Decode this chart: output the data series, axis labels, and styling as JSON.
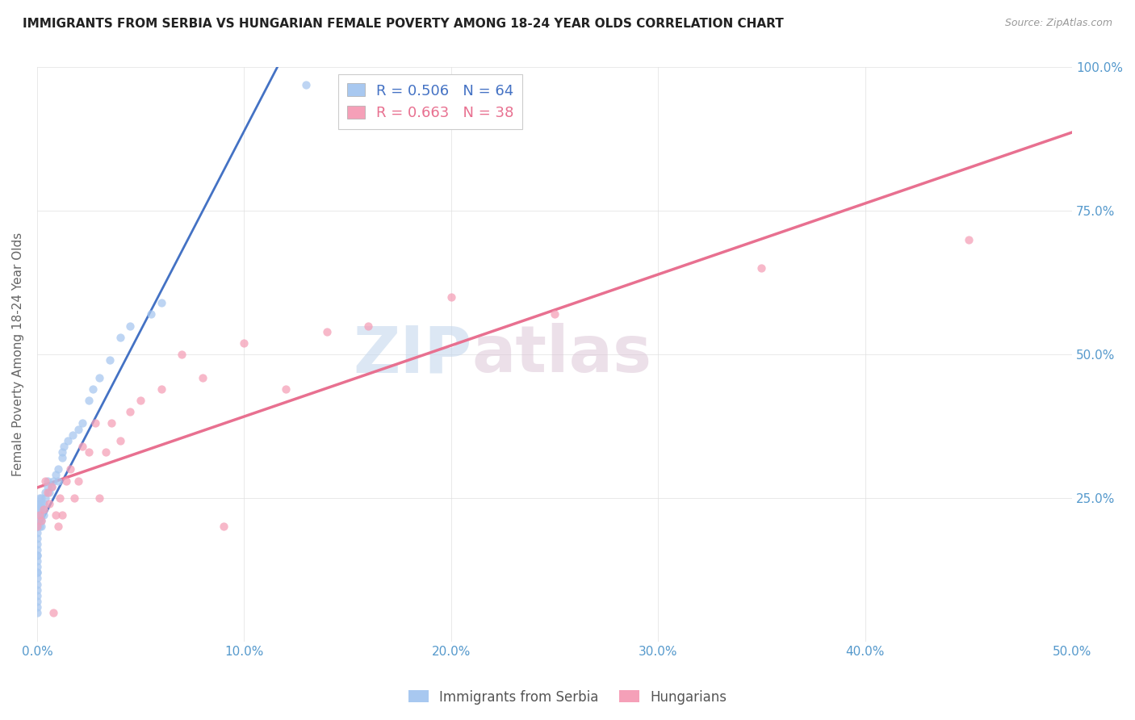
{
  "title": "IMMIGRANTS FROM SERBIA VS HUNGARIAN FEMALE POVERTY AMONG 18-24 YEAR OLDS CORRELATION CHART",
  "source": "Source: ZipAtlas.com",
  "ylabel": "Female Poverty Among 18-24 Year Olds",
  "legend1_label": "Immigrants from Serbia",
  "legend2_label": "Hungarians",
  "r1": "0.506",
  "n1": "64",
  "r2": "0.663",
  "n2": "38",
  "color1": "#a8c8f0",
  "color2": "#f5a0b8",
  "line_color1": "#4472c4",
  "line_color2": "#e87090",
  "watermark_zip": "ZIP",
  "watermark_atlas": "atlas",
  "watermark_color_zip": "#c8d8ee",
  "watermark_color_atlas": "#d8c8d8",
  "serbia_x": [
    0.0,
    0.0,
    0.0,
    0.0,
    0.0,
    0.0,
    0.0,
    0.0,
    0.0,
    0.0,
    0.0,
    0.0,
    0.0,
    0.0,
    0.0,
    0.0,
    0.0,
    0.0,
    0.0,
    0.0,
    0.0,
    0.0,
    0.0,
    0.001,
    0.001,
    0.001,
    0.001,
    0.001,
    0.001,
    0.002,
    0.002,
    0.002,
    0.002,
    0.002,
    0.002,
    0.003,
    0.003,
    0.003,
    0.004,
    0.004,
    0.005,
    0.005,
    0.006,
    0.007,
    0.008,
    0.009,
    0.01,
    0.01,
    0.012,
    0.012,
    0.013,
    0.015,
    0.017,
    0.02,
    0.022,
    0.025,
    0.027,
    0.03,
    0.035,
    0.04,
    0.045,
    0.055,
    0.06,
    0.13
  ],
  "serbia_y": [
    0.05,
    0.06,
    0.07,
    0.08,
    0.09,
    0.1,
    0.11,
    0.12,
    0.12,
    0.13,
    0.14,
    0.15,
    0.15,
    0.16,
    0.17,
    0.18,
    0.19,
    0.2,
    0.2,
    0.21,
    0.22,
    0.23,
    0.24,
    0.2,
    0.21,
    0.22,
    0.23,
    0.24,
    0.25,
    0.2,
    0.21,
    0.22,
    0.23,
    0.24,
    0.25,
    0.22,
    0.23,
    0.24,
    0.25,
    0.26,
    0.27,
    0.28,
    0.26,
    0.27,
    0.28,
    0.29,
    0.28,
    0.3,
    0.32,
    0.33,
    0.34,
    0.35,
    0.36,
    0.37,
    0.38,
    0.42,
    0.44,
    0.46,
    0.49,
    0.53,
    0.55,
    0.57,
    0.59,
    0.97
  ],
  "hungarian_x": [
    0.0,
    0.001,
    0.002,
    0.003,
    0.004,
    0.005,
    0.006,
    0.007,
    0.008,
    0.009,
    0.01,
    0.011,
    0.012,
    0.014,
    0.016,
    0.018,
    0.02,
    0.022,
    0.025,
    0.028,
    0.03,
    0.033,
    0.036,
    0.04,
    0.045,
    0.05,
    0.06,
    0.07,
    0.08,
    0.09,
    0.1,
    0.12,
    0.14,
    0.16,
    0.2,
    0.25,
    0.35,
    0.45
  ],
  "hungarian_y": [
    0.2,
    0.22,
    0.21,
    0.23,
    0.28,
    0.26,
    0.24,
    0.27,
    0.05,
    0.22,
    0.2,
    0.25,
    0.22,
    0.28,
    0.3,
    0.25,
    0.28,
    0.34,
    0.33,
    0.38,
    0.25,
    0.33,
    0.38,
    0.35,
    0.4,
    0.42,
    0.44,
    0.5,
    0.46,
    0.2,
    0.52,
    0.44,
    0.54,
    0.55,
    0.6,
    0.57,
    0.65,
    0.7
  ],
  "xlim": [
    0.0,
    0.5
  ],
  "ylim": [
    0.0,
    1.0
  ],
  "xtick_vals": [
    0.0,
    0.1,
    0.2,
    0.3,
    0.4,
    0.5
  ],
  "xtick_labels": [
    "0.0%",
    "10.0%",
    "20.0%",
    "30.0%",
    "40.0%",
    "50.0%"
  ],
  "ytick_right_vals": [
    0.25,
    0.5,
    0.75,
    1.0
  ],
  "ytick_right_labels": [
    "25.0%",
    "50.0%",
    "75.0%",
    "100.0%"
  ]
}
